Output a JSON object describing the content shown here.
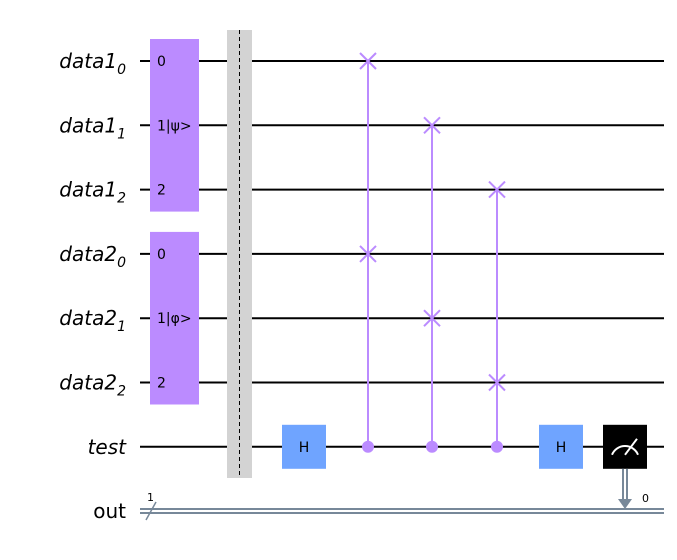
{
  "circuit": {
    "qubits": [
      {
        "name": "data1",
        "index": "0"
      },
      {
        "name": "data1",
        "index": "1"
      },
      {
        "name": "data1",
        "index": "2"
      },
      {
        "name": "data2",
        "index": "0"
      },
      {
        "name": "data2",
        "index": "1"
      },
      {
        "name": "data2",
        "index": "2"
      },
      {
        "name": "test",
        "index": ""
      }
    ],
    "classical": {
      "name": "out",
      "width": "1",
      "bit": "0"
    },
    "init_gates": [
      {
        "qubits": [
          0,
          1,
          2
        ],
        "labels": [
          "0",
          "1",
          "2"
        ],
        "state": "|ψ>"
      },
      {
        "qubits": [
          3,
          4,
          5
        ],
        "labels": [
          "0",
          "1",
          "2"
        ],
        "state": "|φ>"
      }
    ],
    "gates": {
      "h1": {
        "label": "H",
        "qubit": 6
      },
      "h2": {
        "label": "H",
        "qubit": 6
      }
    },
    "cswaps": [
      {
        "control": 6,
        "targets": [
          0,
          3
        ]
      },
      {
        "control": 6,
        "targets": [
          1,
          4
        ]
      },
      {
        "control": 6,
        "targets": [
          2,
          5
        ]
      }
    ],
    "measure": {
      "qubit": 6,
      "clbit": 0
    }
  },
  "colors": {
    "init_gate": "#bb8bff",
    "cswap": "#bb8bff",
    "h_gate": "#6fa4ff",
    "barrier": "#d3d3d3",
    "measure": "#000000",
    "classical_wire": "#778899",
    "wire": "#000000"
  }
}
